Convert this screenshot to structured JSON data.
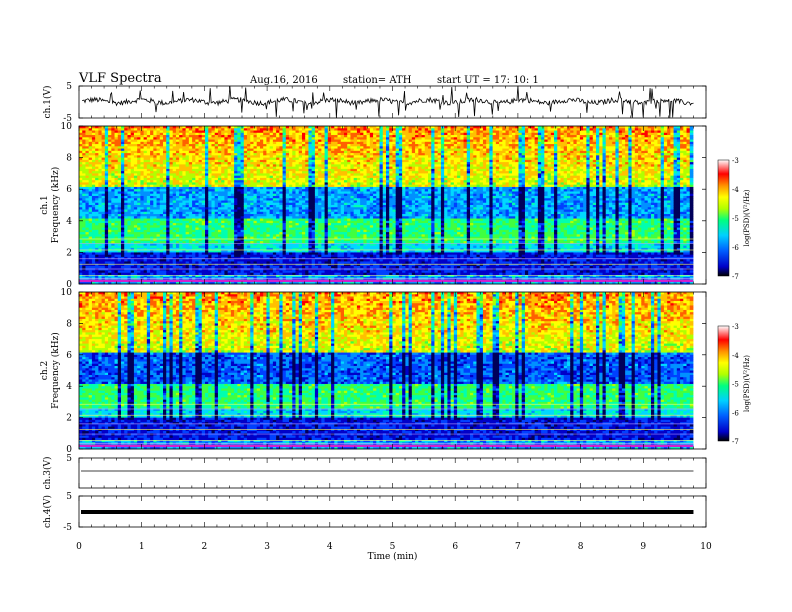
{
  "header": {
    "title": "VLF  Spectra",
    "date": "Aug.16,  2016",
    "station": "station= ATH",
    "start_ut": "start  UT  =     17: 10: 1"
  },
  "chart_data": [
    {
      "type": "line",
      "name": "ch1-waveform",
      "ylabel": "ch.1(V)",
      "ylim": [
        -5,
        5
      ],
      "yticks": [
        "5",
        "-5"
      ]
    },
    {
      "type": "heatmap",
      "ylabel_top": "ch.1",
      "ylabel": "Frequency  (kHz)",
      "ylim": [
        0,
        10
      ],
      "yticks": [
        "10",
        "8",
        "6",
        "4",
        "2",
        "0"
      ],
      "colorbar": {
        "label": "log(PSD)(V²/Hz)",
        "range": [
          -7,
          -3
        ],
        "ticks": [
          "-3",
          "-4",
          "-5",
          "-6",
          "-7"
        ]
      }
    },
    {
      "type": "heatmap",
      "ylabel_top": "ch.2",
      "ylabel": "Frequency  (kHz)",
      "ylim": [
        0,
        10
      ],
      "yticks": [
        "10",
        "8",
        "6",
        "4",
        "2",
        "0"
      ],
      "colorbar": {
        "label": "log(PSD)(V²/Hz)",
        "range": [
          -7,
          -3
        ],
        "ticks": [
          "-3",
          "-4",
          "-5",
          "-6",
          "-7"
        ]
      }
    },
    {
      "type": "line",
      "name": "ch3-waveform",
      "ylabel": "ch.3(V)",
      "ylim": [
        -5,
        5
      ],
      "yticks": [
        "5"
      ]
    },
    {
      "type": "line",
      "name": "ch4-waveform",
      "ylabel": "ch.4(V)",
      "ylim": [
        -5,
        5
      ],
      "yticks": [
        "5",
        "-5"
      ]
    }
  ],
  "xaxis": {
    "label": "Time  (min)",
    "range": [
      0,
      10
    ],
    "ticks": [
      "0",
      "1",
      "2",
      "3",
      "4",
      "5",
      "6",
      "7",
      "8",
      "9",
      "10"
    ],
    "data_end": 9.8
  },
  "colors": {
    "spectrum_scale": [
      "#000000",
      "#0000c8",
      "#0060ff",
      "#00d0ff",
      "#00ff80",
      "#b0ff00",
      "#ffff00",
      "#ff9000",
      "#ff0000",
      "#ffffff"
    ]
  }
}
